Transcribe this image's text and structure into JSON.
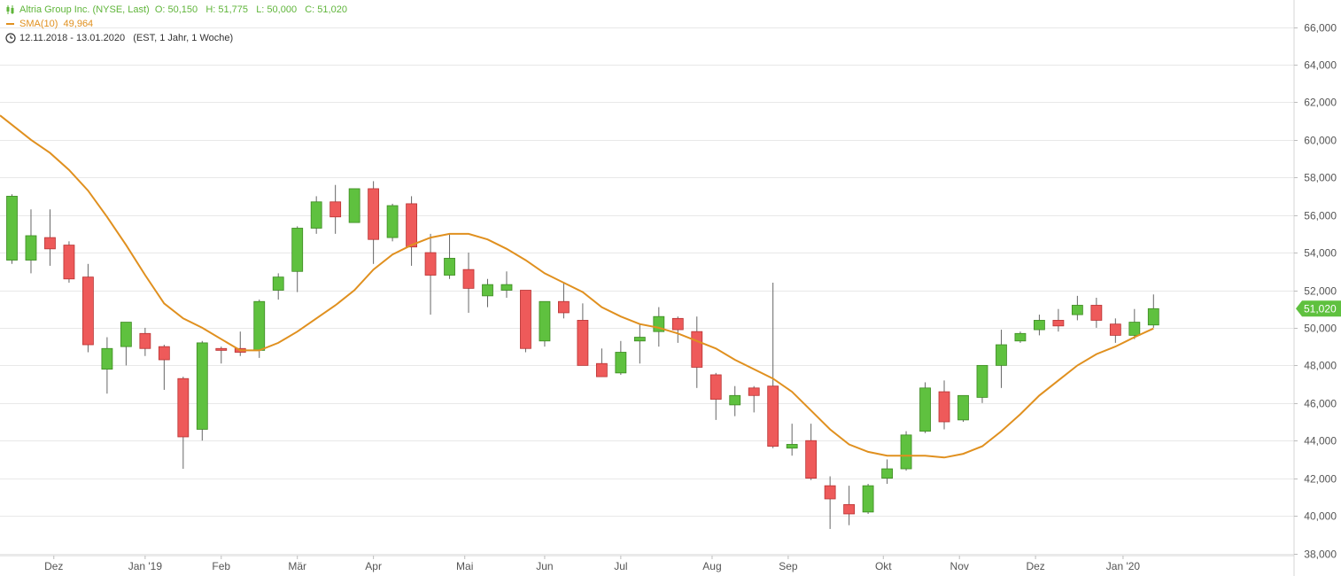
{
  "header": {
    "instrument_text": "Altria Group Inc. (NYSE, Last)",
    "ohlc_text": "O: 50,150   H: 51,775   L: 50,000   C: 51,020",
    "sma_label": "SMA(10)",
    "sma_value": "49,964",
    "range_text": "12.11.2018 - 13.01.2020",
    "range_meta": "(EST, 1 Jahr, 1 Woche)",
    "candle_icon": "candlestick-icon",
    "line_icon": "line-swatch-icon",
    "clock_icon": "clock-icon"
  },
  "colors": {
    "up": "#5fc13f",
    "down": "#ee5a5a",
    "sma": "#e0901f",
    "grid": "#e8e8e8",
    "badge": "#5fc13f"
  },
  "last_price_label": "51,020",
  "chart_data": {
    "type": "candlestick",
    "y_axis_ticks": [
      "38,000",
      "40,000",
      "42,000",
      "44,000",
      "46,000",
      "48,000",
      "50,000",
      "52,000",
      "54,000",
      "56,000",
      "58,000",
      "60,000",
      "62,000",
      "64,000",
      "66,000"
    ],
    "y_axis_values": [
      38,
      40,
      42,
      44,
      46,
      48,
      50,
      52,
      54,
      56,
      58,
      60,
      62,
      64,
      66
    ],
    "ylim": [
      37.5,
      67.2
    ],
    "x_axis_labels": [
      {
        "label": "Dez",
        "week": 2.2
      },
      {
        "label": "Jan '19",
        "week": 7.0
      },
      {
        "label": "Feb",
        "week": 11.0
      },
      {
        "label": "Mär",
        "week": 15.0
      },
      {
        "label": "Apr",
        "week": 19.0
      },
      {
        "label": "Mai",
        "week": 23.8
      },
      {
        "label": "Jun",
        "week": 28.0
      },
      {
        "label": "Jul",
        "week": 32.0
      },
      {
        "label": "Aug",
        "week": 36.8
      },
      {
        "label": "Sep",
        "week": 40.8
      },
      {
        "label": "Okt",
        "week": 45.8
      },
      {
        "label": "Nov",
        "week": 49.8
      },
      {
        "label": "Dez",
        "week": 53.8
      },
      {
        "label": "Jan '20",
        "week": 58.4
      }
    ],
    "candles": [
      {
        "o": 53.6,
        "h": 57.1,
        "l": 53.4,
        "c": 57.0
      },
      {
        "o": 53.6,
        "h": 56.3,
        "l": 52.9,
        "c": 54.9
      },
      {
        "o": 54.8,
        "h": 56.3,
        "l": 53.3,
        "c": 54.2
      },
      {
        "o": 54.4,
        "h": 54.6,
        "l": 52.4,
        "c": 52.6
      },
      {
        "o": 52.7,
        "h": 53.4,
        "l": 48.7,
        "c": 49.1
      },
      {
        "o": 47.8,
        "h": 49.5,
        "l": 46.5,
        "c": 48.9
      },
      {
        "o": 49.0,
        "h": 50.3,
        "l": 48.0,
        "c": 50.3
      },
      {
        "o": 49.7,
        "h": 50.0,
        "l": 48.5,
        "c": 48.9
      },
      {
        "o": 49.0,
        "h": 49.1,
        "l": 46.7,
        "c": 48.3
      },
      {
        "o": 47.3,
        "h": 47.4,
        "l": 42.5,
        "c": 44.2
      },
      {
        "o": 44.6,
        "h": 49.3,
        "l": 44.0,
        "c": 49.2
      },
      {
        "o": 48.9,
        "h": 49.0,
        "l": 48.1,
        "c": 48.8
      },
      {
        "o": 48.9,
        "h": 49.8,
        "l": 48.5,
        "c": 48.7
      },
      {
        "o": 48.8,
        "h": 51.5,
        "l": 48.4,
        "c": 51.4
      },
      {
        "o": 52.0,
        "h": 52.9,
        "l": 51.5,
        "c": 52.7
      },
      {
        "o": 53.0,
        "h": 55.4,
        "l": 51.9,
        "c": 55.3
      },
      {
        "o": 55.3,
        "h": 57.0,
        "l": 55.0,
        "c": 56.7
      },
      {
        "o": 56.7,
        "h": 57.6,
        "l": 55.0,
        "c": 55.9
      },
      {
        "o": 55.6,
        "h": 57.4,
        "l": 55.6,
        "c": 57.4
      },
      {
        "o": 57.4,
        "h": 57.8,
        "l": 53.4,
        "c": 54.7
      },
      {
        "o": 54.8,
        "h": 56.6,
        "l": 54.6,
        "c": 56.5
      },
      {
        "o": 56.6,
        "h": 57.0,
        "l": 53.3,
        "c": 54.3
      },
      {
        "o": 54.0,
        "h": 55.0,
        "l": 50.7,
        "c": 52.8
      },
      {
        "o": 52.8,
        "h": 55.0,
        "l": 52.6,
        "c": 53.7
      },
      {
        "o": 53.1,
        "h": 54.0,
        "l": 50.8,
        "c": 52.1
      },
      {
        "o": 51.7,
        "h": 52.6,
        "l": 51.1,
        "c": 52.3
      },
      {
        "o": 52.0,
        "h": 53.0,
        "l": 51.6,
        "c": 52.3
      },
      {
        "o": 52.0,
        "h": 52.0,
        "l": 48.7,
        "c": 48.9
      },
      {
        "o": 49.3,
        "h": 51.4,
        "l": 49.0,
        "c": 51.4
      },
      {
        "o": 51.4,
        "h": 52.4,
        "l": 50.5,
        "c": 50.8
      },
      {
        "o": 50.4,
        "h": 51.3,
        "l": 48.0,
        "c": 48.0
      },
      {
        "o": 48.1,
        "h": 48.9,
        "l": 47.4,
        "c": 47.4
      },
      {
        "o": 47.6,
        "h": 49.3,
        "l": 47.5,
        "c": 48.7
      },
      {
        "o": 49.3,
        "h": 50.2,
        "l": 48.1,
        "c": 49.5
      },
      {
        "o": 49.8,
        "h": 51.1,
        "l": 49.0,
        "c": 50.6
      },
      {
        "o": 50.5,
        "h": 50.6,
        "l": 49.2,
        "c": 49.9
      },
      {
        "o": 49.8,
        "h": 50.6,
        "l": 46.8,
        "c": 47.9
      },
      {
        "o": 47.5,
        "h": 47.6,
        "l": 45.1,
        "c": 46.2
      },
      {
        "o": 45.9,
        "h": 46.9,
        "l": 45.3,
        "c": 46.4
      },
      {
        "o": 46.8,
        "h": 46.9,
        "l": 45.5,
        "c": 46.4
      },
      {
        "o": 46.9,
        "h": 52.4,
        "l": 43.6,
        "c": 43.7
      },
      {
        "o": 43.6,
        "h": 44.9,
        "l": 43.2,
        "c": 43.8
      },
      {
        "o": 44.0,
        "h": 44.9,
        "l": 41.9,
        "c": 42.0
      },
      {
        "o": 41.6,
        "h": 42.1,
        "l": 39.3,
        "c": 40.9
      },
      {
        "o": 40.6,
        "h": 41.6,
        "l": 39.5,
        "c": 40.1
      },
      {
        "o": 40.2,
        "h": 41.7,
        "l": 40.1,
        "c": 41.6
      },
      {
        "o": 42.0,
        "h": 43.0,
        "l": 41.7,
        "c": 42.5
      },
      {
        "o": 42.5,
        "h": 44.5,
        "l": 42.4,
        "c": 44.3
      },
      {
        "o": 44.5,
        "h": 47.1,
        "l": 44.4,
        "c": 46.8
      },
      {
        "o": 46.6,
        "h": 47.2,
        "l": 44.6,
        "c": 45.0
      },
      {
        "o": 45.1,
        "h": 46.4,
        "l": 45.0,
        "c": 46.4
      },
      {
        "o": 46.3,
        "h": 48.0,
        "l": 46.0,
        "c": 48.0
      },
      {
        "o": 48.0,
        "h": 49.9,
        "l": 46.8,
        "c": 49.1
      },
      {
        "o": 49.3,
        "h": 49.8,
        "l": 49.2,
        "c": 49.7
      },
      {
        "o": 49.9,
        "h": 50.7,
        "l": 49.6,
        "c": 50.4
      },
      {
        "o": 50.4,
        "h": 51.0,
        "l": 49.8,
        "c": 50.1
      },
      {
        "o": 50.7,
        "h": 51.7,
        "l": 50.4,
        "c": 51.2
      },
      {
        "o": 51.2,
        "h": 51.6,
        "l": 50.0,
        "c": 50.4
      },
      {
        "o": 50.2,
        "h": 50.5,
        "l": 49.2,
        "c": 49.6
      },
      {
        "o": 49.6,
        "h": 51.0,
        "l": 49.4,
        "c": 50.3
      },
      {
        "o": 50.15,
        "h": 51.775,
        "l": 50.0,
        "c": 51.02
      }
    ],
    "sma": [
      61.3,
      60.0,
      59.3,
      58.4,
      57.3,
      55.9,
      54.4,
      52.8,
      51.3,
      50.5,
      50.0,
      49.4,
      48.8,
      48.8,
      49.2,
      49.8,
      50.5,
      51.2,
      52.0,
      53.1,
      53.9,
      54.4,
      54.8,
      55.0,
      55.0,
      54.7,
      54.2,
      53.6,
      52.9,
      52.4,
      51.9,
      51.1,
      50.6,
      50.2,
      50.0,
      49.7,
      49.3,
      48.9,
      48.3,
      47.8,
      47.3,
      46.6,
      45.6,
      44.6,
      43.8,
      43.4,
      43.2,
      43.2,
      43.2,
      43.1,
      43.3,
      43.7,
      44.5,
      45.4,
      46.4,
      47.2,
      48.0,
      48.6,
      49.0,
      49.5,
      49.964
    ]
  }
}
